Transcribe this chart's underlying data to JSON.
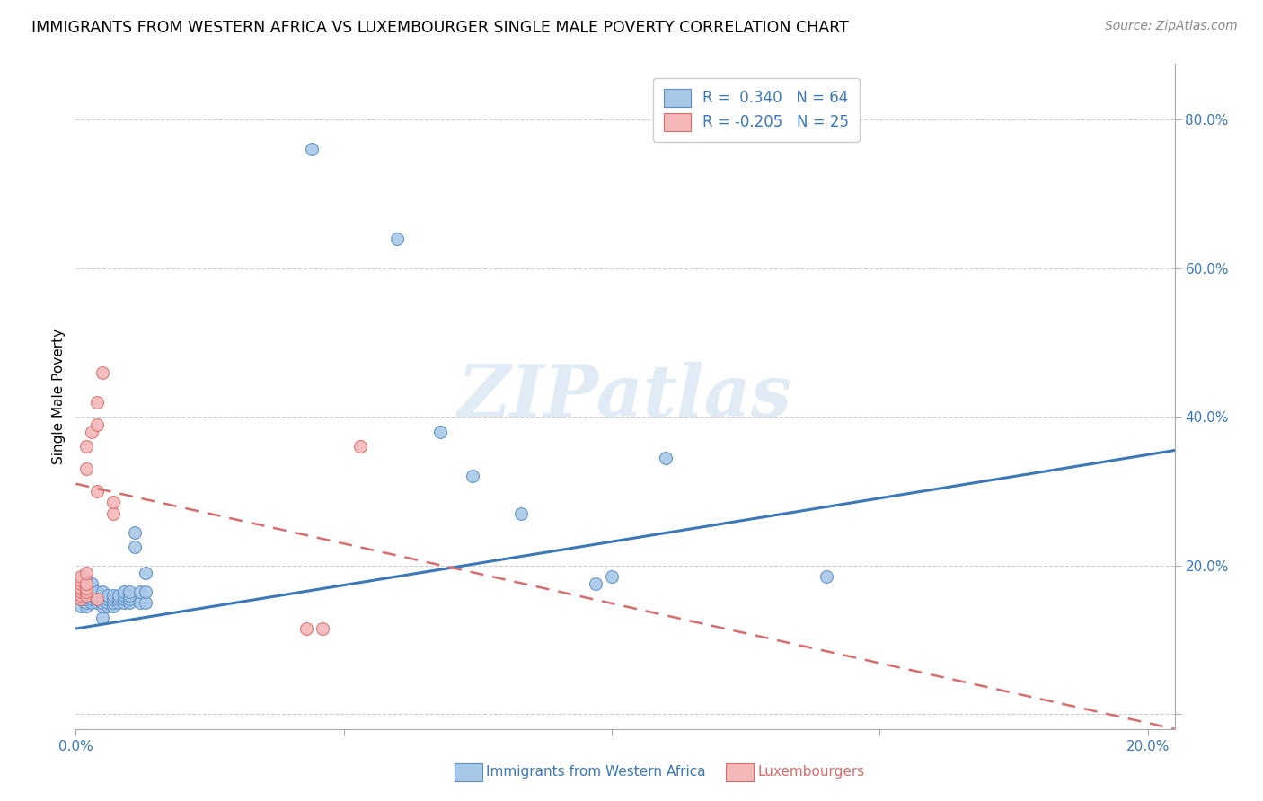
{
  "title": "IMMIGRANTS FROM WESTERN AFRICA VS LUXEMBOURGER SINGLE MALE POVERTY CORRELATION CHART",
  "source": "Source: ZipAtlas.com",
  "ylabel": "Single Male Poverty",
  "y_ticks": [
    0.0,
    0.2,
    0.4,
    0.6,
    0.8
  ],
  "y_tick_labels": [
    "",
    "20.0%",
    "40.0%",
    "60.0%",
    "80.0%"
  ],
  "x_lim": [
    0.0,
    0.205
  ],
  "y_lim": [
    -0.02,
    0.875
  ],
  "blue_color": "#a8c8e8",
  "pink_color": "#f4b8b8",
  "blue_edge_color": "#5b8ec7",
  "pink_edge_color": "#d96b6b",
  "blue_line_color": "#3a78b8",
  "pink_line_color": "#d96b6b",
  "watermark": "ZIPatlas",
  "blue_scatter": [
    [
      0.001,
      0.145
    ],
    [
      0.001,
      0.155
    ],
    [
      0.001,
      0.16
    ],
    [
      0.001,
      0.165
    ],
    [
      0.001,
      0.17
    ],
    [
      0.001,
      0.175
    ],
    [
      0.001,
      0.18
    ],
    [
      0.002,
      0.145
    ],
    [
      0.002,
      0.15
    ],
    [
      0.002,
      0.155
    ],
    [
      0.002,
      0.16
    ],
    [
      0.002,
      0.165
    ],
    [
      0.002,
      0.17
    ],
    [
      0.002,
      0.175
    ],
    [
      0.002,
      0.18
    ],
    [
      0.003,
      0.15
    ],
    [
      0.003,
      0.155
    ],
    [
      0.003,
      0.16
    ],
    [
      0.003,
      0.165
    ],
    [
      0.003,
      0.17
    ],
    [
      0.003,
      0.175
    ],
    [
      0.004,
      0.15
    ],
    [
      0.004,
      0.155
    ],
    [
      0.004,
      0.16
    ],
    [
      0.004,
      0.165
    ],
    [
      0.005,
      0.13
    ],
    [
      0.005,
      0.145
    ],
    [
      0.005,
      0.15
    ],
    [
      0.005,
      0.155
    ],
    [
      0.005,
      0.16
    ],
    [
      0.005,
      0.165
    ],
    [
      0.006,
      0.145
    ],
    [
      0.006,
      0.15
    ],
    [
      0.006,
      0.155
    ],
    [
      0.006,
      0.16
    ],
    [
      0.007,
      0.145
    ],
    [
      0.007,
      0.15
    ],
    [
      0.007,
      0.155
    ],
    [
      0.007,
      0.16
    ],
    [
      0.008,
      0.15
    ],
    [
      0.008,
      0.155
    ],
    [
      0.008,
      0.16
    ],
    [
      0.009,
      0.15
    ],
    [
      0.009,
      0.155
    ],
    [
      0.009,
      0.16
    ],
    [
      0.009,
      0.165
    ],
    [
      0.01,
      0.15
    ],
    [
      0.01,
      0.155
    ],
    [
      0.01,
      0.16
    ],
    [
      0.01,
      0.165
    ],
    [
      0.011,
      0.225
    ],
    [
      0.011,
      0.245
    ],
    [
      0.012,
      0.15
    ],
    [
      0.012,
      0.165
    ],
    [
      0.013,
      0.15
    ],
    [
      0.013,
      0.165
    ],
    [
      0.013,
      0.19
    ],
    [
      0.044,
      0.76
    ],
    [
      0.06,
      0.64
    ],
    [
      0.068,
      0.38
    ],
    [
      0.074,
      0.32
    ],
    [
      0.083,
      0.27
    ],
    [
      0.097,
      0.175
    ],
    [
      0.1,
      0.185
    ],
    [
      0.11,
      0.345
    ],
    [
      0.14,
      0.185
    ]
  ],
  "pink_scatter": [
    [
      0.001,
      0.155
    ],
    [
      0.001,
      0.16
    ],
    [
      0.001,
      0.165
    ],
    [
      0.001,
      0.17
    ],
    [
      0.001,
      0.175
    ],
    [
      0.001,
      0.18
    ],
    [
      0.001,
      0.185
    ],
    [
      0.002,
      0.16
    ],
    [
      0.002,
      0.165
    ],
    [
      0.002,
      0.17
    ],
    [
      0.002,
      0.175
    ],
    [
      0.002,
      0.19
    ],
    [
      0.002,
      0.33
    ],
    [
      0.002,
      0.36
    ],
    [
      0.003,
      0.38
    ],
    [
      0.004,
      0.155
    ],
    [
      0.004,
      0.3
    ],
    [
      0.004,
      0.39
    ],
    [
      0.004,
      0.42
    ],
    [
      0.005,
      0.46
    ],
    [
      0.007,
      0.27
    ],
    [
      0.007,
      0.285
    ],
    [
      0.043,
      0.115
    ],
    [
      0.046,
      0.115
    ],
    [
      0.053,
      0.36
    ]
  ],
  "blue_line_x": [
    0.0,
    0.205
  ],
  "blue_line_y": [
    0.115,
    0.355
  ],
  "pink_line_x": [
    0.0,
    0.205
  ],
  "pink_line_y": [
    0.31,
    -0.02
  ]
}
